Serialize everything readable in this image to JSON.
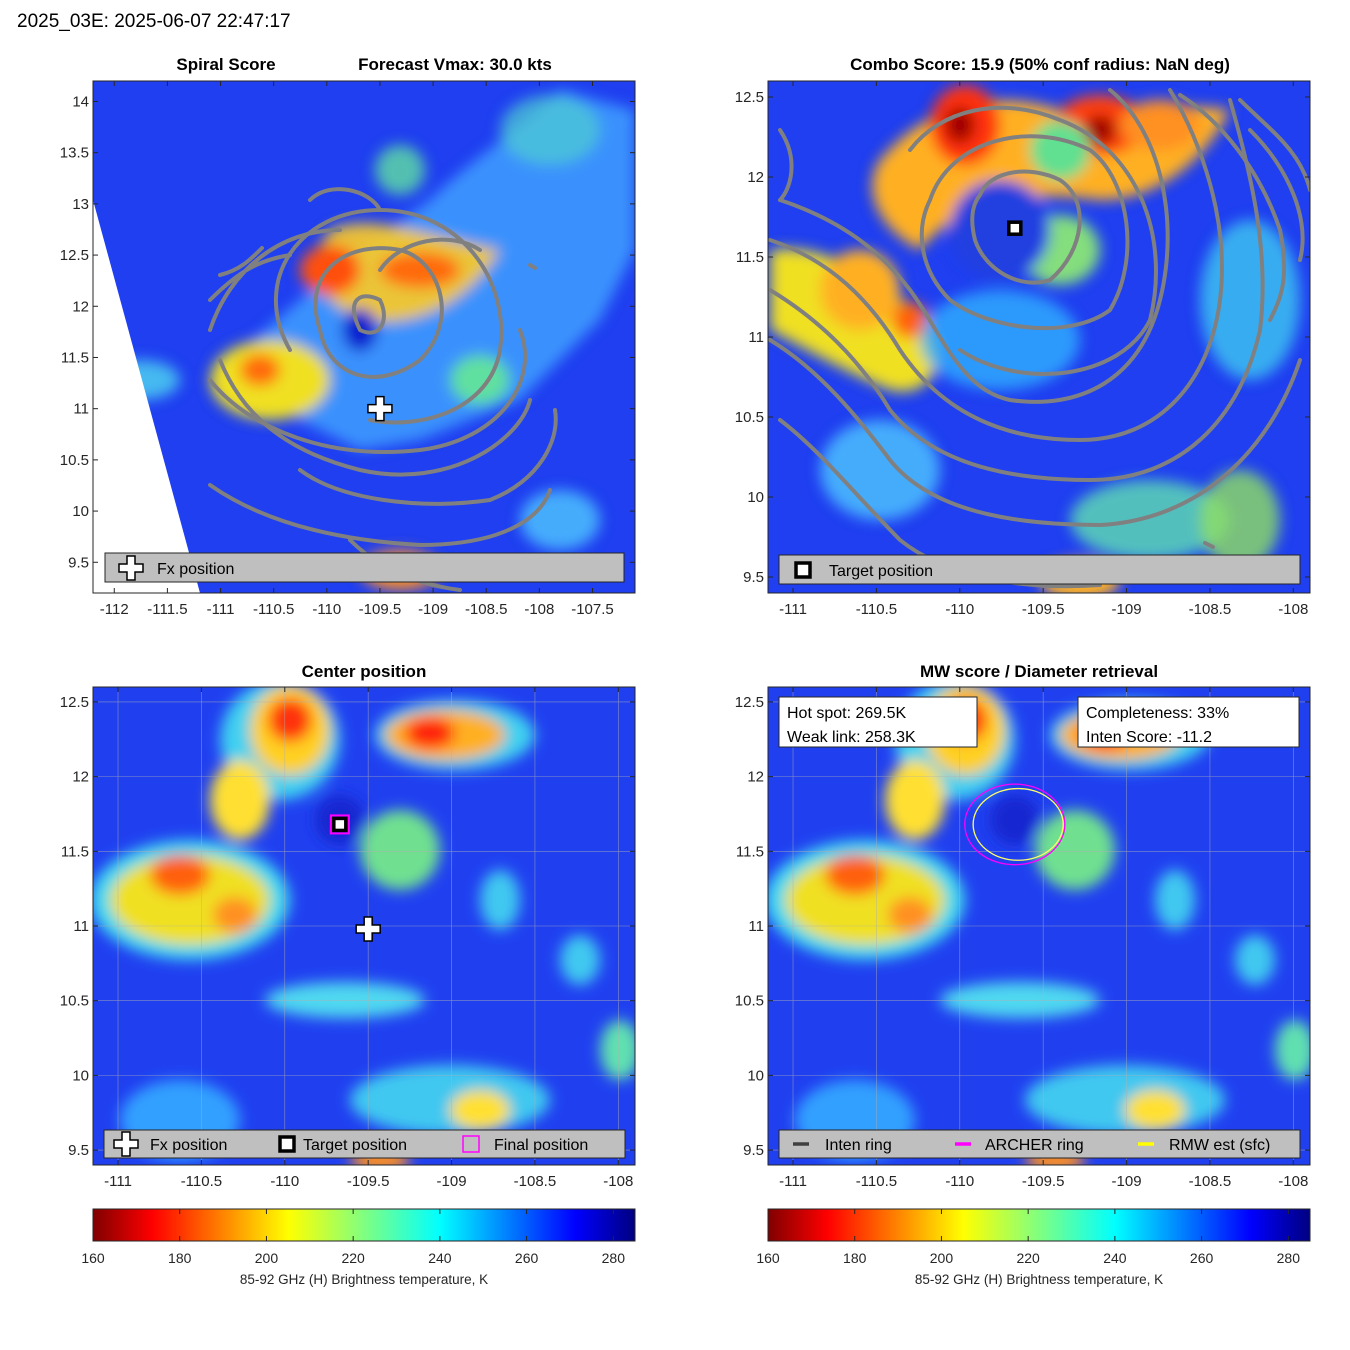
{
  "figure": {
    "title": "2025_03E: 2025-06-07 22:47:17"
  },
  "chart_data": [
    {
      "type": "heatmap",
      "panel": "spiral",
      "title_left": "Spiral Score",
      "title_right": "Forecast Vmax: 30.0 kts",
      "xlim": [
        -112.2,
        -107.1
      ],
      "ylim": [
        9.2,
        14.2
      ],
      "xticks": [
        -112,
        -111.5,
        -111,
        -110.5,
        -110,
        -109.5,
        -109,
        -108.5,
        -108,
        -107.5
      ],
      "yticks": [
        9.5,
        10,
        10.5,
        11,
        11.5,
        12,
        12.5,
        13,
        13.5,
        14
      ],
      "xtick_labels": [
        "-112",
        "-111.5",
        "-111",
        "-110.5",
        "-110",
        "-109.5",
        "-109",
        "-108.5",
        "-108",
        "-107.5"
      ],
      "ytick_labels": [
        "9.5",
        "10",
        "10.5",
        "11",
        "11.5",
        "12",
        "12.5",
        "13",
        "13.5",
        "14"
      ],
      "legend": [
        {
          "marker": "plus",
          "label": "Fx position"
        }
      ],
      "markers": [
        {
          "kind": "plus",
          "x": -109.5,
          "y": 11.0
        }
      ],
      "contours": true,
      "grid": false
    },
    {
      "type": "heatmap",
      "panel": "combo",
      "title": "Combo Score: 15.9  (50% conf radius: NaN deg)",
      "xlim": [
        -111.15,
        -107.9
      ],
      "ylim": [
        9.4,
        12.6
      ],
      "xticks": [
        -111,
        -110.5,
        -110,
        -109.5,
        -109,
        -108.5,
        -108
      ],
      "yticks": [
        9.5,
        10,
        10.5,
        11,
        11.5,
        12,
        12.5
      ],
      "xtick_labels": [
        "-111",
        "-110.5",
        "-110",
        "-109.5",
        "-109",
        "-108.5",
        "-108"
      ],
      "ytick_labels": [
        "9.5",
        "10",
        "10.5",
        "11",
        "11.5",
        "12",
        "12.5"
      ],
      "legend": [
        {
          "marker": "square",
          "label": "Target position"
        }
      ],
      "markers": [
        {
          "kind": "square",
          "x": -109.67,
          "y": 11.68
        }
      ],
      "contours": true,
      "grid": false
    },
    {
      "type": "heatmap",
      "panel": "center",
      "title": "Center position",
      "xlim": [
        -111.15,
        -107.9
      ],
      "ylim": [
        9.4,
        12.6
      ],
      "xticks": [
        -111,
        -110.5,
        -110,
        -109.5,
        -109,
        -108.5,
        -108
      ],
      "yticks": [
        9.5,
        10,
        10.5,
        11,
        11.5,
        12,
        12.5
      ],
      "xtick_labels": [
        "-111",
        "-110.5",
        "-110",
        "-109.5",
        "-109",
        "-108.5",
        "-108"
      ],
      "ytick_labels": [
        "9.5",
        "10",
        "10.5",
        "11",
        "11.5",
        "12",
        "12.5"
      ],
      "legend": [
        {
          "marker": "plus",
          "label": "Fx position"
        },
        {
          "marker": "square",
          "label": "Target position"
        },
        {
          "marker": "magenta-square",
          "label": "Final position"
        }
      ],
      "markers": [
        {
          "kind": "plus",
          "x": -109.5,
          "y": 10.98
        },
        {
          "kind": "square",
          "x": -109.67,
          "y": 11.68
        },
        {
          "kind": "magenta-square",
          "x": -109.67,
          "y": 11.68
        }
      ],
      "grid": true
    },
    {
      "type": "heatmap",
      "panel": "mw",
      "title": "MW score / Diameter retrieval",
      "xlim": [
        -111.15,
        -107.9
      ],
      "ylim": [
        9.4,
        12.6
      ],
      "xticks": [
        -111,
        -110.5,
        -110,
        -109.5,
        -109,
        -108.5,
        -108
      ],
      "yticks": [
        9.5,
        10,
        10.5,
        11,
        11.5,
        12,
        12.5
      ],
      "xtick_labels": [
        "-111",
        "-110.5",
        "-110",
        "-109.5",
        "-109",
        "-108.5",
        "-108"
      ],
      "ytick_labels": [
        "9.5",
        "10",
        "10.5",
        "11",
        "11.5",
        "12",
        "12.5"
      ],
      "info_left": [
        "Hot spot: 269.5K",
        "Weak link: 258.3K"
      ],
      "info_right": [
        "Completeness: 33%",
        "Inten Score: -11.2"
      ],
      "legend": [
        {
          "marker": "line",
          "color": "#404040",
          "label": "Inten ring"
        },
        {
          "marker": "line",
          "color": "#ff00ff",
          "label": "ARCHER ring"
        },
        {
          "marker": "line",
          "color": "#ffff00",
          "label": "RMW est (sfc)"
        }
      ],
      "rings": [
        {
          "name": "ARCHER ring",
          "x": -109.67,
          "y": 11.68,
          "rx_deg": 0.3,
          "ry_deg": 0.27,
          "color": "#ff00ff"
        },
        {
          "name": "RMW est (sfc)",
          "x": -109.65,
          "y": 11.68,
          "rx_deg": 0.27,
          "ry_deg": 0.24,
          "color": "#ffff66"
        }
      ],
      "grid": true
    }
  ],
  "colorbar": {
    "min": 160,
    "max": 285,
    "ticks": [
      160,
      180,
      200,
      220,
      240,
      260,
      280
    ],
    "tick_labels": [
      "160",
      "180",
      "200",
      "220",
      "240",
      "260",
      "280"
    ],
    "label": "85-92 GHz (H) Brightness temperature, K",
    "colormap": "jet-reversed"
  }
}
